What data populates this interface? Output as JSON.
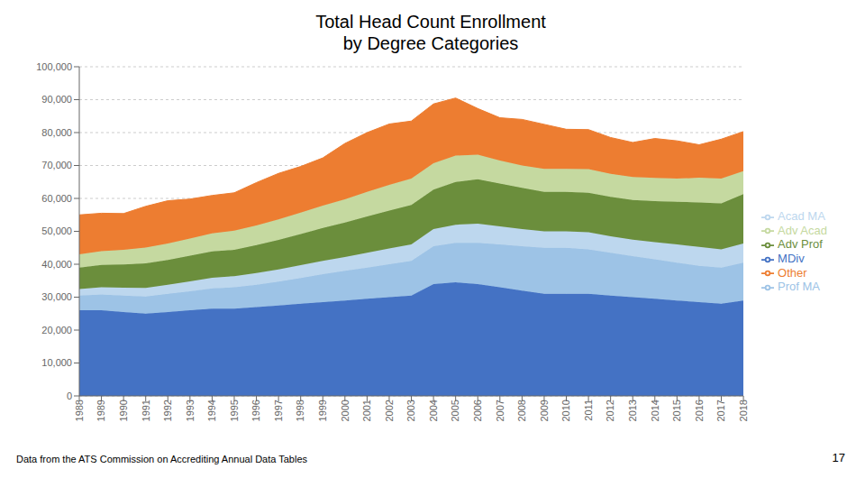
{
  "chart_data": {
    "type": "area",
    "title": "Total Head Count Enrollment\nby Degree Categories",
    "stacked": true,
    "grid": true,
    "legend": "right",
    "annotations": [
      "Data from the ATS Commission on Accrediting Annual Data Tables",
      "17"
    ],
    "x": [
      1988,
      1989,
      1990,
      1991,
      1992,
      1993,
      1994,
      1995,
      1996,
      1997,
      1998,
      1999,
      2000,
      2001,
      2002,
      2003,
      2004,
      2005,
      2006,
      2007,
      2008,
      2009,
      2010,
      2011,
      2012,
      2013,
      2014,
      2015,
      2016,
      2017,
      2018
    ],
    "xlim": [
      1988,
      2018
    ],
    "xticks": [
      1988,
      1989,
      1990,
      1991,
      1992,
      1993,
      1994,
      1995,
      1996,
      1997,
      1998,
      1999,
      2000,
      2001,
      2002,
      2003,
      2004,
      2005,
      2006,
      2007,
      2008,
      2009,
      2010,
      2011,
      2012,
      2013,
      2014,
      2015,
      2016,
      2017,
      2018
    ],
    "ylim": [
      0,
      100000
    ],
    "yticks": [
      0,
      {
        "value": 10000,
        "label": "10,000"
      },
      {
        "value": 20000,
        "label": "20,000"
      },
      {
        "value": 30000,
        "label": "30,000"
      },
      {
        "value": 40000,
        "label": "40,000"
      },
      {
        "value": 50000,
        "label": "50,000"
      },
      {
        "value": 60000,
        "label": "60,000"
      },
      {
        "value": 70000,
        "label": "70,000"
      },
      {
        "value": 80000,
        "label": "80,000"
      },
      {
        "value": 90000,
        "label": "90,000"
      },
      {
        "value": 100000,
        "label": "100,000"
      }
    ],
    "series": [
      {
        "name": "MDiv",
        "color": "#4472C4",
        "values": [
          26000,
          26000,
          25500,
          25000,
          25500,
          26000,
          26500,
          26500,
          27000,
          27500,
          28000,
          28500,
          29000,
          29500,
          30000,
          30500,
          34000,
          34500,
          34000,
          33000,
          32000,
          31000,
          31000,
          31000,
          30500,
          30000,
          29500,
          29000,
          28500,
          28000,
          29000
        ]
      },
      {
        "name": "Prof MA",
        "color": "#9DC3E6",
        "values": [
          4500,
          4800,
          5000,
          5200,
          5500,
          5800,
          6200,
          6500,
          6800,
          7200,
          7800,
          8500,
          9000,
          9500,
          10000,
          10500,
          11500,
          12000,
          12500,
          13000,
          13500,
          14000,
          14000,
          13500,
          13000,
          12500,
          12000,
          11500,
          11000,
          11000,
          11500
        ]
      },
      {
        "name": "Acad MA",
        "color": "#BDD7EE",
        "values": [
          2000,
          2200,
          2400,
          2600,
          2800,
          3000,
          3200,
          3400,
          3500,
          3700,
          3900,
          4000,
          4200,
          4500,
          4800,
          5000,
          5200,
          5500,
          5800,
          5500,
          5200,
          5000,
          5000,
          5200,
          5000,
          5000,
          5200,
          5500,
          5800,
          5500,
          5800
        ]
      },
      {
        "name": "Adv Prof",
        "color": "#6B8E3C",
        "values": [
          6500,
          6800,
          7000,
          7500,
          7500,
          7800,
          8000,
          8000,
          8500,
          9000,
          9500,
          10000,
          10500,
          11000,
          11500,
          12000,
          12000,
          13000,
          13500,
          13000,
          12500,
          12000,
          12000,
          12000,
          12000,
          12000,
          12500,
          13000,
          13500,
          14000,
          15000
        ]
      },
      {
        "name": "Adv Acad",
        "color": "#C5D9A0",
        "values": [
          4000,
          4200,
          4500,
          4800,
          5000,
          5200,
          5500,
          5800,
          6000,
          6200,
          6500,
          6800,
          7000,
          7500,
          7800,
          8000,
          8000,
          8000,
          7500,
          7000,
          6800,
          7000,
          7000,
          7200,
          7000,
          7000,
          7000,
          7000,
          7500,
          7500,
          7000
        ]
      },
      {
        "name": "Other",
        "color": "#ED7D31",
        "values": [
          12000,
          11500,
          11000,
          12500,
          13000,
          12000,
          11500,
          11500,
          13000,
          14000,
          14000,
          14500,
          17000,
          18000,
          18500,
          17500,
          18000,
          17500,
          14000,
          13000,
          14000,
          13500,
          12000,
          12000,
          11000,
          10500,
          12000,
          11500,
          10000,
          12000,
          12000
        ]
      }
    ]
  }
}
